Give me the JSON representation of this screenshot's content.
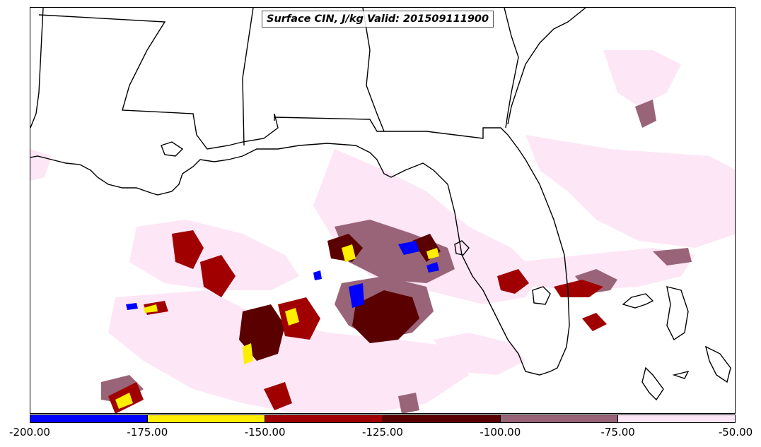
{
  "title": "Surface CIN, J/kg Valid: 201509111900",
  "colorbar": {
    "ticks": [
      "-200.00",
      "-175.00",
      "-150.00",
      "-125.00",
      "-100.00",
      "-75.00",
      "-50.00"
    ],
    "colors": [
      "#0000ff",
      "#ffee00",
      "#a00000",
      "#5a0000",
      "#9a6478",
      "#fde6f6"
    ]
  }
}
